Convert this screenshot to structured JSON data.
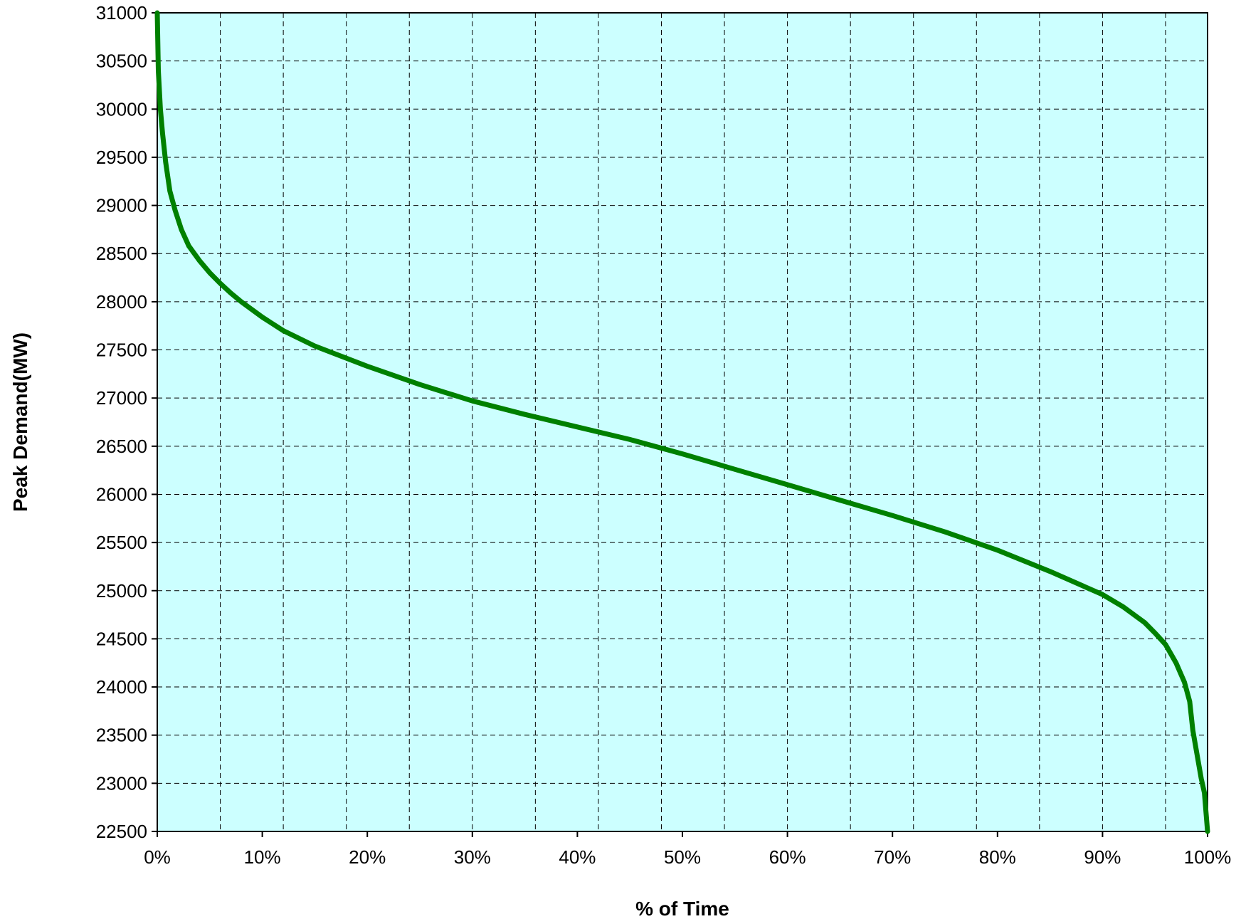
{
  "chart_data": {
    "type": "line",
    "title": "",
    "xlabel": "% of Time",
    "ylabel": "Peak  Demand(MW)",
    "xlim": [
      0,
      100
    ],
    "ylim": [
      22500,
      31000
    ],
    "x_tick_values": [
      0,
      10,
      20,
      30,
      40,
      50,
      60,
      70,
      80,
      90,
      100
    ],
    "x_tick_labels": [
      "0%",
      "10%",
      "20%",
      "30%",
      "40%",
      "50%",
      "60%",
      "70%",
      "80%",
      "90%",
      "100%"
    ],
    "y_tick_values": [
      22500,
      23000,
      23500,
      24000,
      24500,
      25000,
      25500,
      26000,
      26500,
      27000,
      27500,
      28000,
      28500,
      29000,
      29500,
      30000,
      30500,
      31000
    ],
    "y_tick_labels": [
      "22500",
      "23000",
      "23500",
      "24000",
      "24500",
      "25000",
      "25500",
      "26000",
      "26500",
      "27000",
      "27500",
      "28000",
      "28500",
      "29000",
      "29500",
      "30000",
      "30500",
      "31000"
    ],
    "x_grid_values": [
      6,
      12,
      18,
      24,
      30,
      36,
      42,
      48,
      54,
      60,
      66,
      72,
      78,
      84,
      90,
      96
    ],
    "grid": true,
    "legend": "none",
    "plot_background": "#ccffff",
    "series": [
      {
        "color": "#008000",
        "x": [
          0,
          0.1,
          0.3,
          0.5,
          0.8,
          1.2,
          1.7,
          2.3,
          3,
          4,
          5,
          6,
          7,
          8,
          10,
          12,
          15,
          20,
          25,
          30,
          35,
          40,
          45,
          50,
          55,
          60,
          65,
          70,
          75,
          80,
          85,
          90,
          92,
          94,
          95,
          96,
          97,
          97.8,
          98.3,
          98.6,
          99,
          99.4,
          99.7,
          100
        ],
        "y": [
          31000,
          30400,
          30000,
          29750,
          29450,
          29150,
          28950,
          28750,
          28580,
          28430,
          28300,
          28190,
          28090,
          28000,
          27840,
          27700,
          27540,
          27330,
          27140,
          26970,
          26830,
          26700,
          26570,
          26420,
          26260,
          26100,
          25940,
          25780,
          25610,
          25420,
          25200,
          24960,
          24830,
          24670,
          24560,
          24440,
          24250,
          24050,
          23850,
          23550,
          23300,
          23050,
          22900,
          22500
        ]
      }
    ]
  }
}
